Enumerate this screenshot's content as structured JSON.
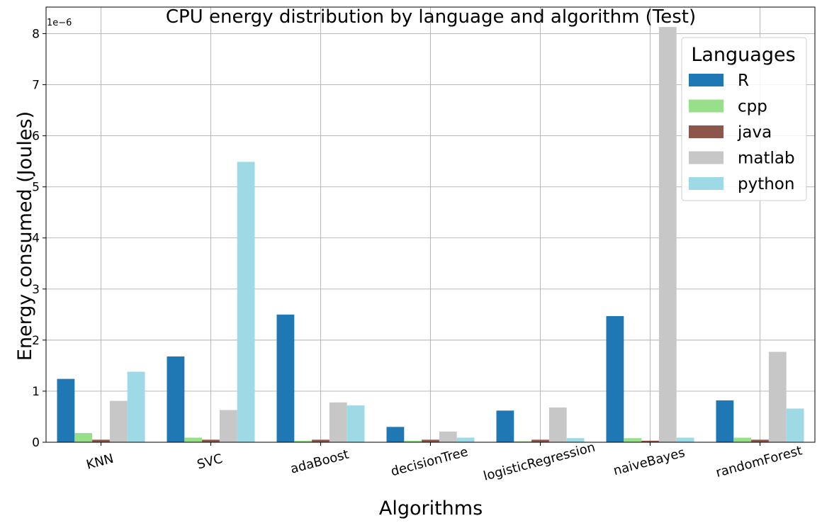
{
  "chart_data": {
    "type": "bar",
    "title": "CPU energy distribution by language and algorithm (Test)",
    "xlabel": "Algorithms",
    "ylabel": "Energy consumed (Joules)",
    "y_scale_label": "1e−6",
    "ylim": [
      0,
      8.52
    ],
    "y_ticks": [
      "0",
      "1",
      "2",
      "3",
      "4",
      "5",
      "6",
      "7",
      "8"
    ],
    "grid": true,
    "legend_title": "Languages",
    "legend_position": "top-right",
    "categories": [
      "KNN",
      "SVC",
      "adaBoost",
      "decisionTree",
      "logisticRegression",
      "naiveBayes",
      "randomForest"
    ],
    "series": [
      {
        "name": "R",
        "color": "#1f77b4",
        "values": [
          1.24,
          1.68,
          2.5,
          0.3,
          0.62,
          2.47,
          0.82
        ]
      },
      {
        "name": "cpp",
        "color": "#98df8a",
        "values": [
          0.18,
          0.09,
          0.03,
          0.03,
          0.02,
          0.08,
          0.09
        ]
      },
      {
        "name": "java",
        "color": "#8c564b",
        "values": [
          0.05,
          0.05,
          0.05,
          0.05,
          0.05,
          0.03,
          0.05
        ]
      },
      {
        "name": "matlab",
        "color": "#c7c7c7",
        "values": [
          0.81,
          0.63,
          0.78,
          0.21,
          0.68,
          8.13,
          1.77
        ]
      },
      {
        "name": "python",
        "color": "#9edae5",
        "values": [
          1.38,
          5.49,
          0.72,
          0.09,
          0.08,
          0.09,
          0.66
        ]
      }
    ]
  }
}
